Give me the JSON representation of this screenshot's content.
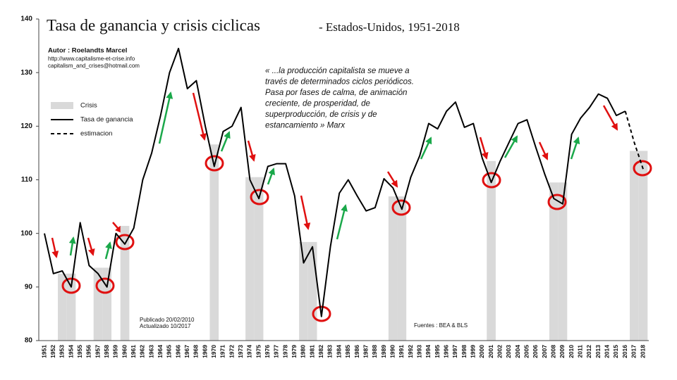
{
  "chart_data": {
    "type": "line",
    "title": "Tasa de ganancia y crisis ciclicas",
    "subtitle": "- Estados-Unidos, 1951-2018",
    "author": [
      "Autor : Roelandts Marcel",
      "http://www.capitalisme-et-crise.info",
      "capitalism_and_crises@hotmail.com"
    ],
    "quote": [
      "« ...la producción capitalista se mueve a",
      "través de determinados ciclos periódicos.",
      "Pasa por fases de calma, de animación",
      "creciente, de prosperidad, de",
      "superproducción, de crisis y de",
      "estancamiento » Marx"
    ],
    "published": [
      "Publicado 20/02/2010",
      "Actualizado 10/2017"
    ],
    "source": "Fuentes : BEA & BLS",
    "categories": [
      "1951",
      "1952",
      "1953",
      "1954",
      "1955",
      "1956",
      "1957",
      "1958",
      "1959",
      "1960",
      "1961",
      "1962",
      "1963",
      "1964",
      "1965",
      "1966",
      "1967",
      "1968",
      "1969",
      "1970",
      "1971",
      "1972",
      "1973",
      "1974",
      "1975",
      "1976",
      "1977",
      "1978",
      "1979",
      "1980",
      "1981",
      "1982",
      "1983",
      "1984",
      "1985",
      "1986",
      "1987",
      "1988",
      "1989",
      "1990",
      "1991",
      "1992",
      "1993",
      "1994",
      "1995",
      "1996",
      "1997",
      "1998",
      "1999",
      "2000",
      "2001",
      "2002",
      "2003",
      "2004",
      "2005",
      "2006",
      "2007",
      "2008",
      "2009",
      "2010",
      "2011",
      "2012",
      "2013",
      "2014",
      "2015",
      "2016",
      "2017",
      "2018"
    ],
    "series": [
      {
        "name": "Crisis",
        "kind": "bar",
        "color": "#d9d9d9",
        "values": [
          null,
          null,
          92.5,
          92.5,
          null,
          null,
          93.6,
          93.6,
          null,
          101.4,
          null,
          null,
          null,
          null,
          null,
          null,
          null,
          null,
          null,
          116.6,
          null,
          null,
          null,
          110.5,
          110.5,
          null,
          null,
          null,
          null,
          98.4,
          98.4,
          null,
          null,
          null,
          null,
          null,
          null,
          null,
          null,
          106.9,
          106.9,
          null,
          null,
          null,
          null,
          null,
          null,
          null,
          null,
          null,
          113.5,
          null,
          null,
          null,
          null,
          null,
          null,
          109.5,
          109.5,
          null,
          null,
          null,
          null,
          null,
          null,
          null,
          115.4,
          115.4
        ]
      },
      {
        "name": "Tasa de ganancia",
        "kind": "line",
        "color": "#000000",
        "dashed": false,
        "values": [
          100,
          92.5,
          93,
          90,
          102,
          94,
          92.5,
          90,
          100,
          98,
          101,
          110,
          115,
          122,
          130,
          134.5,
          127,
          128.5,
          120,
          112.5,
          119,
          120,
          123.5,
          110,
          106.5,
          112.5,
          113,
          113,
          107,
          94.5,
          97.5,
          84.5,
          97.5,
          107.5,
          110,
          107,
          104.2,
          104.8,
          110.2,
          108.5,
          104.5,
          110.5,
          114.5,
          120.5,
          119.5,
          122.8,
          124.5,
          119.8,
          120.5,
          114,
          109.5,
          113.5,
          117,
          120.5,
          121.2,
          116,
          111,
          106.5,
          105.5,
          118.5,
          121.5,
          123.5,
          126,
          125.2,
          122,
          122.8,
          null,
          null
        ]
      },
      {
        "name": "estimacion",
        "kind": "line",
        "color": "#000000",
        "dashed": true,
        "values": [
          null,
          null,
          null,
          null,
          null,
          null,
          null,
          null,
          null,
          null,
          null,
          null,
          null,
          null,
          null,
          null,
          null,
          null,
          null,
          null,
          null,
          null,
          null,
          null,
          null,
          null,
          null,
          null,
          null,
          null,
          null,
          null,
          null,
          null,
          null,
          null,
          null,
          null,
          null,
          null,
          null,
          null,
          null,
          null,
          null,
          null,
          null,
          null,
          null,
          null,
          null,
          null,
          null,
          null,
          null,
          null,
          null,
          null,
          null,
          null,
          null,
          null,
          null,
          null,
          null,
          122.8,
          117,
          112
        ]
      }
    ],
    "ylim": [
      80,
      140
    ],
    "yticks": [
      80,
      90,
      100,
      110,
      120,
      130,
      140
    ],
    "grid": false
  }
}
